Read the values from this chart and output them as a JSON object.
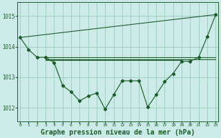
{
  "bg_color": "#cceae7",
  "grid_color": "#99ccbb",
  "line_color": "#1a5c2a",
  "xlabel": "Graphe pression niveau de la mer (hPa)",
  "xlabel_fontsize": 7.0,
  "ylabel_ticks": [
    1012,
    1013,
    1014,
    1015
  ],
  "xlim": [
    -0.3,
    23.3
  ],
  "ylim": [
    1011.55,
    1015.45
  ],
  "xticks": [
    0,
    1,
    2,
    3,
    4,
    5,
    6,
    7,
    8,
    9,
    10,
    11,
    12,
    13,
    14,
    15,
    16,
    17,
    18,
    19,
    20,
    21,
    22,
    23
  ],
  "upper_line": {
    "x": [
      0,
      23
    ],
    "y": [
      1014.3,
      1015.05
    ]
  },
  "flat_line1": {
    "x": [
      3,
      23
    ],
    "y": [
      1013.65,
      1013.65
    ]
  },
  "flat_line2": {
    "x": [
      3,
      23
    ],
    "y": [
      1013.58,
      1013.58
    ]
  },
  "flat_line3": {
    "x": [
      3,
      19
    ],
    "y": [
      1013.55,
      1013.55
    ]
  },
  "series_main": {
    "x": [
      0,
      1,
      2,
      3,
      4,
      5,
      6,
      7,
      8,
      9,
      10,
      11,
      12,
      13,
      14,
      15,
      16,
      17,
      18,
      19,
      20,
      21,
      22,
      23
    ],
    "y": [
      1014.3,
      1013.9,
      1013.65,
      1013.65,
      1013.48,
      1012.72,
      1012.52,
      1012.22,
      1012.38,
      1012.48,
      1011.95,
      1012.42,
      1012.88,
      1012.88,
      1012.88,
      1012.02,
      1012.42,
      1012.85,
      1013.12,
      1013.52,
      1013.52,
      1013.65,
      1014.32,
      1015.05
    ]
  }
}
